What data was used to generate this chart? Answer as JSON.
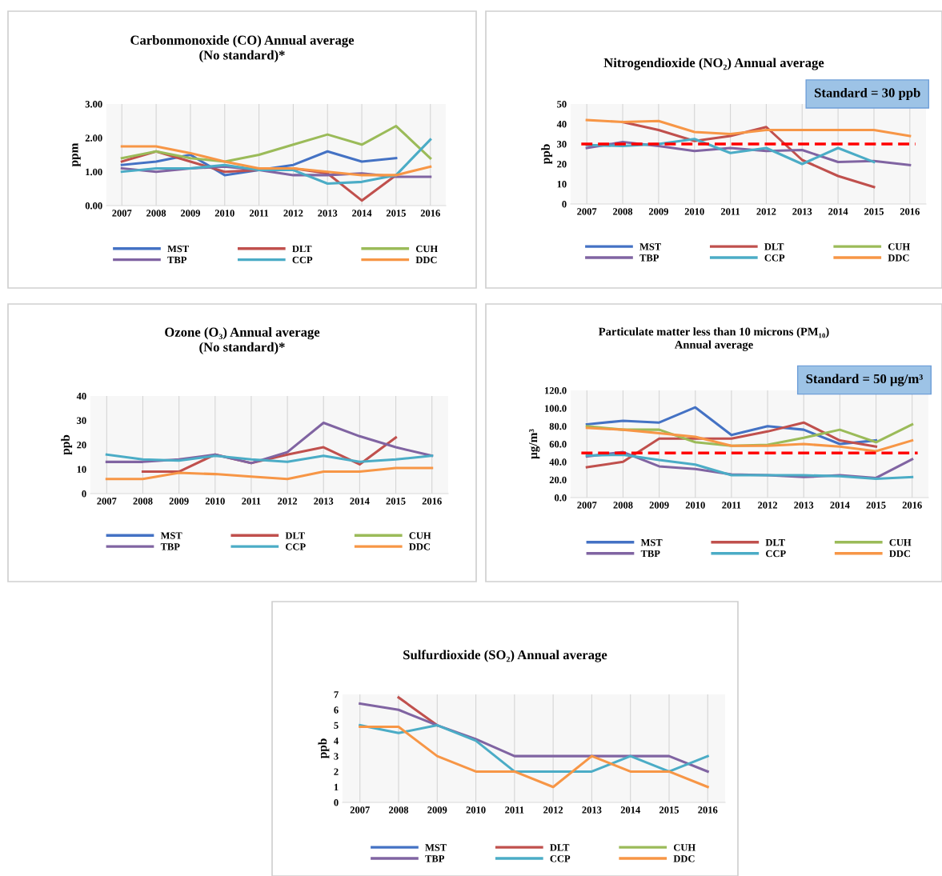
{
  "chart_data": [
    {
      "type": "line",
      "title": "Carbonmonoxide (CO) Annual average\n(No standard)*",
      "ylabel": "ppm",
      "categories": [
        "2007",
        "2008",
        "2009",
        "2010",
        "2011",
        "2012",
        "2013",
        "2014",
        "2015",
        "2016"
      ],
      "ylim": [
        0,
        3
      ],
      "yticks": [
        {
          "value": 0,
          "label": "0.00"
        },
        {
          "value": 1,
          "label": "1.00"
        },
        {
          "value": 2,
          "label": "2.00"
        },
        {
          "value": 3,
          "label": "3.00"
        }
      ],
      "grid": "x",
      "legend": "bottom",
      "series": [
        {
          "name": "MST",
          "color": "#4472c4",
          "values": [
            1.2,
            1.3,
            1.5,
            0.9,
            1.05,
            1.2,
            1.6,
            1.3,
            1.4,
            null
          ]
        },
        {
          "name": "DLT",
          "color": "#c0504d",
          "values": [
            1.3,
            1.6,
            1.3,
            1.0,
            1.05,
            1.1,
            0.95,
            0.15,
            0.9,
            null
          ]
        },
        {
          "name": "CUH",
          "color": "#9bbb59",
          "values": [
            1.4,
            1.6,
            1.4,
            1.3,
            1.5,
            1.8,
            2.1,
            1.8,
            2.35,
            1.4
          ]
        },
        {
          "name": "TBP",
          "color": "#8064a2",
          "values": [
            1.1,
            1.0,
            1.1,
            1.15,
            1.05,
            0.9,
            0.9,
            0.95,
            0.85,
            0.85
          ]
        },
        {
          "name": "CCP",
          "color": "#4bacc6",
          "values": [
            1.0,
            1.1,
            1.1,
            1.2,
            1.05,
            1.05,
            0.65,
            0.7,
            0.9,
            1.95
          ]
        },
        {
          "name": "DDC",
          "color": "#f79646",
          "values": [
            1.75,
            1.75,
            1.55,
            1.3,
            1.1,
            1.1,
            1.0,
            0.9,
            0.9,
            1.15
          ]
        }
      ]
    },
    {
      "type": "line",
      "title": "Nitrogendioxide (NO₂) Annual average",
      "ylabel": "ppb",
      "categories": [
        "2007",
        "2008",
        "2009",
        "2010",
        "2011",
        "2012",
        "2013",
        "2014",
        "2015",
        "2016"
      ],
      "ylim": [
        0,
        50
      ],
      "yticks": [
        0,
        10,
        20,
        30,
        40,
        50
      ],
      "grid": "x",
      "legend": "bottom",
      "ref_lines": [
        {
          "axis": "y",
          "value": 30,
          "color": "#ff0000",
          "line_style": "dashed"
        }
      ],
      "annotations": [
        "Standard = 30 ppb"
      ],
      "series": [
        {
          "name": "MST",
          "color": "#4472c4",
          "values": [
            null,
            null,
            null,
            null,
            null,
            null,
            null,
            null,
            null,
            null
          ]
        },
        {
          "name": "DLT",
          "color": "#c0504d",
          "values": [
            null,
            41,
            37,
            31.5,
            34,
            38.5,
            22,
            14,
            8.5,
            null
          ]
        },
        {
          "name": "CUH",
          "color": "#9bbb59",
          "values": [
            null,
            null,
            null,
            null,
            null,
            null,
            null,
            null,
            null,
            null
          ]
        },
        {
          "name": "TBP",
          "color": "#8064a2",
          "values": [
            28,
            31,
            29,
            26.5,
            28,
            26.5,
            27,
            21,
            21.5,
            19.5
          ]
        },
        {
          "name": "CCP",
          "color": "#4bacc6",
          "values": [
            29.5,
            29,
            30,
            32.5,
            25.5,
            28,
            20,
            28,
            21,
            null
          ]
        },
        {
          "name": "DDC",
          "color": "#f79646",
          "values": [
            42,
            41,
            41.5,
            36,
            35,
            37,
            37,
            37,
            37,
            34
          ]
        }
      ]
    },
    {
      "type": "line",
      "title": "Ozone (O₃) Annual average\n(No standard)*",
      "ylabel": "ppb",
      "categories": [
        "2007",
        "2008",
        "2009",
        "2010",
        "2011",
        "2012",
        "2013",
        "2014",
        "2015",
        "2016"
      ],
      "ylim": [
        0,
        40
      ],
      "yticks": [
        0,
        10,
        20,
        30,
        40
      ],
      "grid": "x",
      "legend": "bottom",
      "series": [
        {
          "name": "MST",
          "color": "#4472c4",
          "values": [
            null,
            null,
            null,
            null,
            null,
            null,
            null,
            null,
            null,
            null
          ]
        },
        {
          "name": "DLT",
          "color": "#c0504d",
          "values": [
            null,
            9,
            9,
            16,
            12.5,
            16,
            19,
            12,
            23,
            null
          ]
        },
        {
          "name": "CUH",
          "color": "#9bbb59",
          "values": [
            null,
            null,
            null,
            null,
            null,
            null,
            null,
            null,
            null,
            null
          ]
        },
        {
          "name": "TBP",
          "color": "#8064a2",
          "values": [
            13,
            13,
            14,
            16,
            12.5,
            17,
            29,
            23.5,
            19,
            15.5
          ]
        },
        {
          "name": "CCP",
          "color": "#4bacc6",
          "values": [
            16,
            14,
            13.5,
            15.5,
            14,
            13,
            15.5,
            13,
            14,
            15.5
          ]
        },
        {
          "name": "DDC",
          "color": "#f79646",
          "values": [
            6,
            6,
            8.5,
            8,
            7,
            6,
            9,
            9,
            10.5,
            10.5
          ]
        }
      ]
    },
    {
      "type": "line",
      "title": "Particulate matter less than 10 microns (PM₁₀)\nAnnual average",
      "ylabel": "μg/m³",
      "categories": [
        "2007",
        "2008",
        "2009",
        "2010",
        "2011",
        "2012",
        "2013",
        "2014",
        "2015",
        "2016"
      ],
      "ylim": [
        0,
        120
      ],
      "yticks": [
        {
          "value": 0,
          "label": "0.0"
        },
        {
          "value": 20,
          "label": "20.0"
        },
        {
          "value": 40,
          "label": "40.0"
        },
        {
          "value": 60,
          "label": "60.0"
        },
        {
          "value": 80,
          "label": "80.0"
        },
        {
          "value": 100,
          "label": "100.0"
        },
        {
          "value": 120,
          "label": "120.0"
        }
      ],
      "grid": "x",
      "legend": "bottom",
      "ref_lines": [
        {
          "axis": "y",
          "value": 50,
          "color": "#ff0000",
          "line_style": "dashed"
        }
      ],
      "annotations": [
        "Standard = 50 μg/m³"
      ],
      "series": [
        {
          "name": "MST",
          "color": "#4472c4",
          "values": [
            82,
            86,
            84,
            101,
            70,
            80,
            76,
            60,
            64,
            null
          ]
        },
        {
          "name": "DLT",
          "color": "#c0504d",
          "values": [
            34,
            40,
            66,
            66,
            66,
            74,
            84,
            64,
            57,
            null
          ]
        },
        {
          "name": "CUH",
          "color": "#9bbb59",
          "values": [
            80,
            76,
            76,
            62,
            58,
            59,
            67,
            76,
            62,
            82
          ]
        },
        {
          "name": "TBP",
          "color": "#8064a2",
          "values": [
            46,
            51,
            35,
            32,
            26,
            25,
            23,
            25,
            22,
            43
          ]
        },
        {
          "name": "CCP",
          "color": "#4bacc6",
          "values": [
            47,
            48,
            42,
            37,
            25,
            25,
            25,
            24,
            21,
            23
          ]
        },
        {
          "name": "DDC",
          "color": "#f79646",
          "values": [
            78,
            76,
            72,
            68,
            58,
            58,
            60,
            57,
            52,
            64
          ]
        }
      ]
    },
    {
      "type": "line",
      "title": "Sulfurdioxide (SO₂) Annual average",
      "ylabel": "ppb",
      "categories": [
        "2007",
        "2008",
        "2009",
        "2010",
        "2011",
        "2012",
        "2013",
        "2014",
        "2015",
        "2016"
      ],
      "ylim": [
        0,
        7
      ],
      "yticks": [
        0,
        1,
        2,
        3,
        4,
        5,
        6,
        7
      ],
      "grid": "x",
      "legend": "bottom",
      "series": [
        {
          "name": "MST",
          "color": "#4472c4",
          "values": [
            null,
            null,
            null,
            null,
            null,
            null,
            null,
            null,
            null,
            null
          ]
        },
        {
          "name": "DLT",
          "color": "#c0504d",
          "values": [
            null,
            6.8,
            5,
            null,
            null,
            null,
            null,
            null,
            null,
            null
          ]
        },
        {
          "name": "CUH",
          "color": "#9bbb59",
          "values": [
            null,
            null,
            null,
            null,
            null,
            null,
            null,
            null,
            null,
            null
          ]
        },
        {
          "name": "TBP",
          "color": "#8064a2",
          "values": [
            6.4,
            6.0,
            5,
            4.1,
            3,
            3,
            3,
            3,
            3,
            2
          ]
        },
        {
          "name": "CCP",
          "color": "#4bacc6",
          "values": [
            5,
            4.5,
            5,
            4,
            2,
            2,
            2,
            3,
            2,
            3
          ]
        },
        {
          "name": "DDC",
          "color": "#f79646",
          "values": [
            4.9,
            4.9,
            3,
            2,
            2,
            1,
            3,
            2,
            2,
            1
          ]
        }
      ]
    }
  ]
}
